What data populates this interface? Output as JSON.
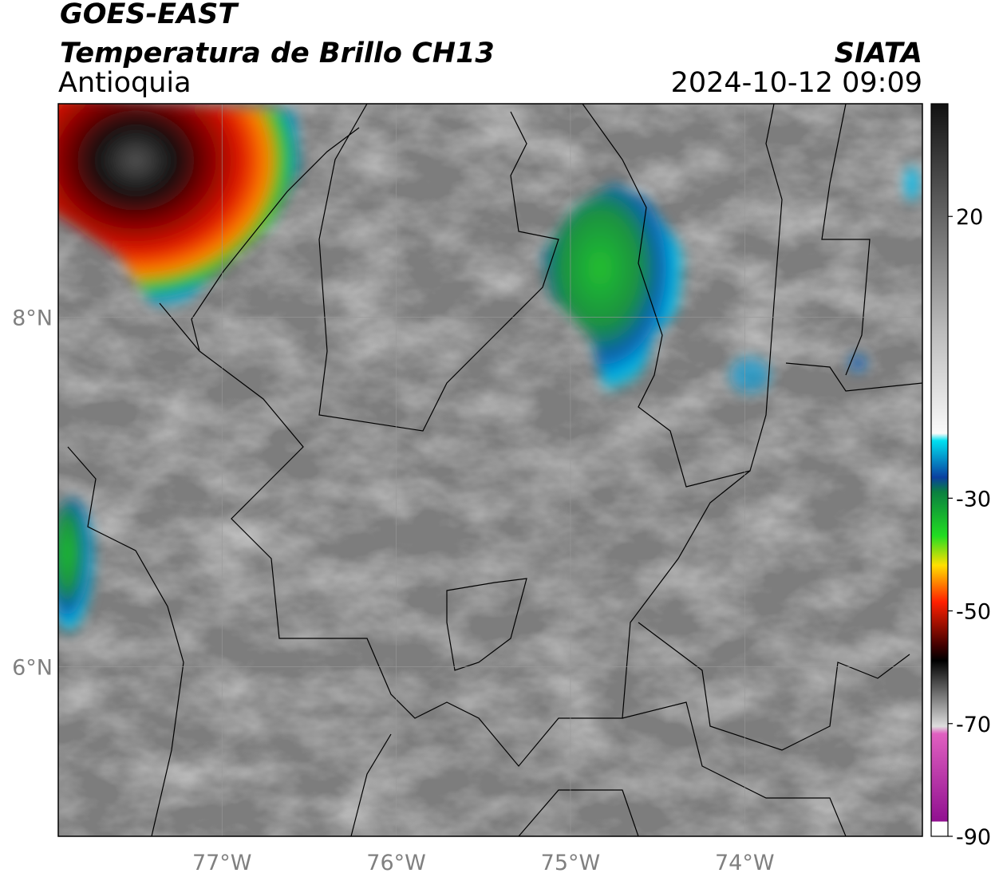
{
  "header": {
    "title": "GOES-EAST",
    "subtitle": "Temperatura de Brillo CH13",
    "region": "Antioquia",
    "source": "SIATA",
    "datetime": "2024-10-12 09:09"
  },
  "map": {
    "lon_range": [
      -77.94,
      -72.98
    ],
    "lat_range": [
      5.03,
      9.22
    ],
    "lon_ticks": [
      {
        "value": -77,
        "label": "77°W"
      },
      {
        "value": -76,
        "label": "76°W"
      },
      {
        "value": -75,
        "label": "75°W"
      },
      {
        "value": -74,
        "label": "74°W"
      }
    ],
    "lat_ticks": [
      {
        "value": 8,
        "label": "8°N"
      },
      {
        "value": 6,
        "label": "6°N"
      }
    ]
  },
  "colorbar": {
    "range": [
      -90,
      40
    ],
    "ticks": [
      20,
      -30,
      -50,
      -70,
      -90
    ]
  }
}
